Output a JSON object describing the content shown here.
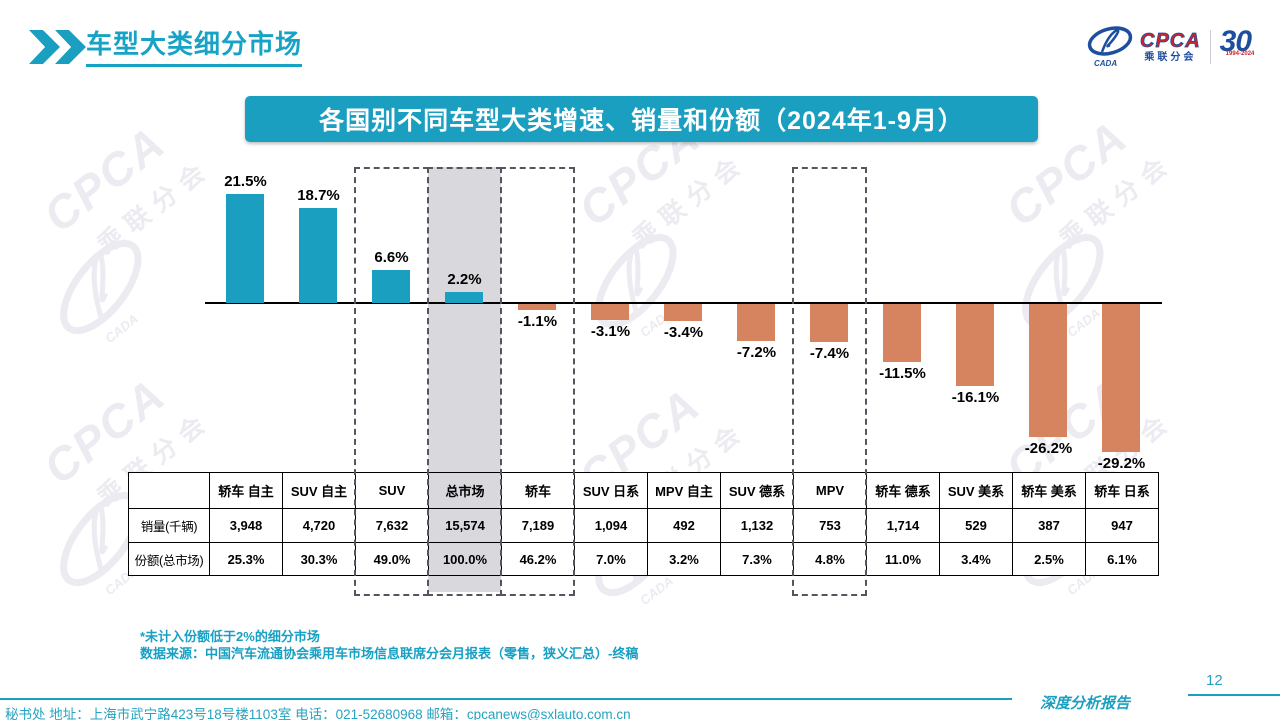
{
  "page": {
    "title": "车型大类细分市场",
    "page_number": "12",
    "report_label": "深度分析报告",
    "footer_contact": "秘书处  地址：上海市武宁路423号18号楼1103室 电话：021-52680968  邮箱：cpcanews@sxlauto.com.cn"
  },
  "banner": {
    "title": "各国别不同车型大类增速、销量和份额（2024年1-9月）"
  },
  "logo": {
    "brand": "CPCA",
    "brand_sub": "乘联分会",
    "cada": "CADA",
    "anniversary_number": "30",
    "anniversary_years": "1994-2024"
  },
  "watermark": {
    "brand": "CPCA",
    "sub": "乘联分会",
    "cada": "CADA"
  },
  "notes": {
    "line1": "*未计入份额低于2%的细分市场",
    "line2": "数据来源：中国汽车流通协会乘用车市场信息联席分会月报表（零售，狭义汇总）-终稿"
  },
  "colors": {
    "accent_teal": "#1B9FC1",
    "bar_positive": "#1B9FC1",
    "bar_negative": "#D6845F",
    "highlight_fill": "#D8D8DD",
    "dashed_border": "#55555F",
    "logo_blue": "#1D4F9E",
    "logo_red": "#D0222A"
  },
  "chart_data": {
    "type": "bar",
    "title": "各国别不同车型大类增速、销量和份额（2024年1-9月）",
    "xlabel": "",
    "ylabel": "",
    "ylim": [
      -32,
      25
    ],
    "grid": false,
    "legend": "none",
    "categories": [
      "轿车 自主",
      "SUV 自主",
      "SUV",
      "总市场",
      "轿车",
      "SUV 日系",
      "MPV 自主",
      "SUV 德系",
      "MPV",
      "轿车 德系",
      "SUV 美系",
      "轿车 美系",
      "轿车 日系"
    ],
    "values": [
      21.5,
      18.7,
      6.6,
      2.2,
      -1.1,
      -3.1,
      -3.4,
      -7.2,
      -7.4,
      -11.5,
      -16.1,
      -26.2,
      -29.2
    ],
    "value_labels": [
      "21.5%",
      "18.7%",
      "6.6%",
      "2.2%",
      "-1.1%",
      "-3.1%",
      "-3.4%",
      "-7.2%",
      "-7.4%",
      "-11.5%",
      "-16.1%",
      "-26.2%",
      "-29.2%"
    ],
    "dashed_highlight_categories": [
      "SUV",
      "总市场",
      "轿车",
      "MPV"
    ],
    "shaded_highlight_categories": [
      "总市场"
    ],
    "table": {
      "row_labels": [
        "销量(千辆)",
        "份额(总市场)"
      ],
      "sales_thousand_units": [
        "3,948",
        "4,720",
        "7,632",
        "15,574",
        "7,189",
        "1,094",
        "492",
        "1,132",
        "753",
        "1,714",
        "529",
        "387",
        "947"
      ],
      "share_of_total": [
        "25.3%",
        "30.3%",
        "49.0%",
        "100.0%",
        "46.2%",
        "7.0%",
        "3.2%",
        "7.3%",
        "4.8%",
        "11.0%",
        "3.4%",
        "2.5%",
        "6.1%"
      ]
    }
  }
}
